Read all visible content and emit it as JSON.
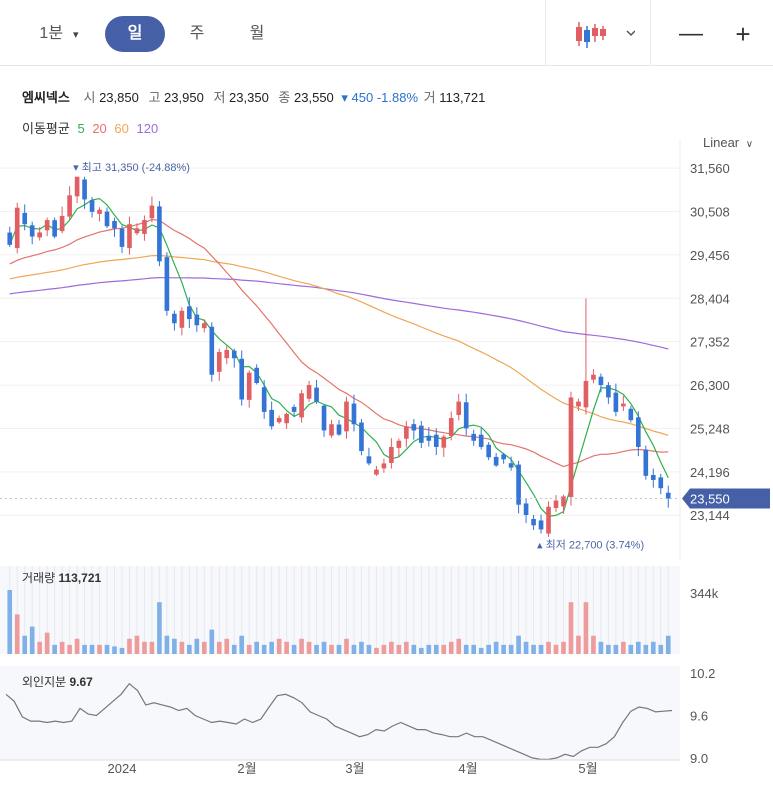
{
  "toolbar": {
    "period_label": "1분",
    "day_label": "일",
    "week_label": "주",
    "month_label": "월",
    "chart_type_icon": "candlestick-icon",
    "minus_label": "—",
    "plus_label": "+"
  },
  "stock": {
    "name": "엠씨넥스",
    "open_label": "시",
    "open": "23,850",
    "high_label": "고",
    "high": "23,950",
    "low_label": "저",
    "low": "23,350",
    "close_label": "종",
    "close": "23,550",
    "change": "▾ 450 -1.88%",
    "volume_label": "거",
    "volume": "113,721"
  },
  "ma_legend": {
    "label": "이동평균",
    "periods": [
      "5",
      "20",
      "60",
      "120"
    ]
  },
  "scale_label": "Linear",
  "colors": {
    "up": "#e15e62",
    "down": "#3474d4",
    "ma5": "#2fb04e",
    "ma20": "#e4736c",
    "ma60": "#f0a656",
    "ma120": "#a06ad8",
    "accent": "#4660a8",
    "price_tag": "#4660a8"
  },
  "chart_data": [
    {
      "type": "candlestick",
      "y_ticks": [
        "31,560",
        "30,508",
        "29,456",
        "28,404",
        "27,352",
        "26,300",
        "25,248",
        "24,196",
        "23,144"
      ],
      "ylim": [
        22350,
        31950
      ],
      "current_price": "23,550",
      "max_annotation": "최고 31,350 (-24.88%)",
      "min_annotation": "최저 22,700 (3.74%)",
      "x_tick_labels": [
        "2024",
        "2월",
        "3월",
        "4월",
        "5월"
      ],
      "closes": [
        29700,
        30600,
        30200,
        29900,
        30000,
        30300,
        29900,
        30400,
        30900,
        31350,
        30800,
        30500,
        30550,
        30150,
        30100,
        29650,
        30200,
        30100,
        30300,
        30650,
        29300,
        28100,
        27800,
        28100,
        27900,
        27750,
        27800,
        26550,
        27100,
        27150,
        26950,
        25950,
        26600,
        26350,
        25650,
        25300,
        25500,
        25600,
        25650,
        26100,
        26300,
        25900,
        25200,
        25350,
        25100,
        25900,
        25350,
        24700,
        24400,
        24250,
        24400,
        24800,
        24950,
        25300,
        25200,
        24900,
        24950,
        24800,
        25050,
        25500,
        25900,
        25250,
        24950,
        24800,
        24550,
        24350,
        24500,
        24300,
        23400,
        23150,
        22900,
        22800,
        23350,
        23500,
        23600,
        26000,
        25900,
        26400,
        26550,
        26300,
        26000,
        25650,
        25850,
        25450,
        24800,
        24100,
        24000,
        23800,
        23550
      ],
      "volumes": [
        210,
        130,
        60,
        90,
        40,
        70,
        30,
        40,
        30,
        50,
        30,
        30,
        30,
        30,
        25,
        20,
        50,
        60,
        40,
        40,
        170,
        60,
        50,
        40,
        30,
        50,
        40,
        80,
        40,
        50,
        30,
        60,
        30,
        40,
        30,
        40,
        50,
        40,
        30,
        50,
        40,
        30,
        40,
        30,
        30,
        50,
        30,
        40,
        30,
        20,
        30,
        40,
        30,
        40,
        30,
        20,
        30,
        30,
        30,
        40,
        50,
        30,
        30,
        20,
        30,
        40,
        30,
        30,
        60,
        40,
        30,
        30,
        40,
        30,
        40,
        170,
        60,
        170,
        60,
        40,
        30,
        30,
        40,
        30,
        40,
        30,
        40,
        30,
        60
      ],
      "volume_value": "113,721",
      "volume_label": "거래량",
      "volume_ytick": "344k"
    },
    {
      "type": "line",
      "label": "외인지분",
      "value": "9.67",
      "y_ticks": [
        "10.2",
        "9.6",
        "9.0"
      ],
      "ylim": [
        8.97,
        10.3
      ],
      "values": [
        9.9,
        9.8,
        9.58,
        9.52,
        9.52,
        9.5,
        9.52,
        9.5,
        9.52,
        9.7,
        9.62,
        9.6,
        9.7,
        9.8,
        9.9,
        10.05,
        9.95,
        9.75,
        9.78,
        9.75,
        9.72,
        9.67,
        9.7,
        9.6,
        9.55,
        9.5,
        9.52,
        9.5,
        9.48,
        9.55,
        9.5,
        9.55,
        9.72,
        9.88,
        9.9,
        9.85,
        9.78,
        9.65,
        9.6,
        9.55,
        9.45,
        9.4,
        9.35,
        9.3,
        9.33,
        9.4,
        9.38,
        9.45,
        9.5,
        9.45,
        9.4,
        9.4,
        9.35,
        9.33,
        9.3,
        9.3,
        9.35,
        9.3,
        9.3,
        9.25,
        9.2,
        9.15,
        9.1,
        9.05,
        9.0,
        8.98,
        8.98,
        9.0,
        9.05,
        9.02,
        9.1,
        9.15,
        9.15,
        9.2,
        9.3,
        9.5,
        9.66,
        9.72,
        9.7,
        9.65,
        9.66,
        9.67
      ]
    }
  ]
}
